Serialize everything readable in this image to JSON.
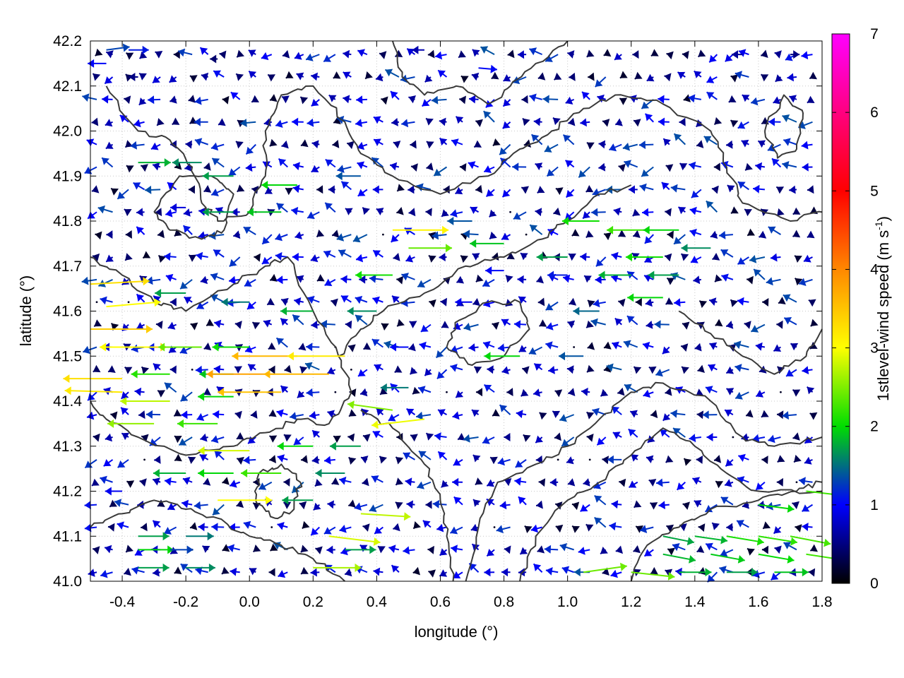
{
  "chart_data": {
    "type": "vector-field",
    "xlabel": "longitude (°)",
    "ylabel": "latitude (°)",
    "colorbar_label": "1stlevel-wind speed (m s",
    "colorbar_label_sup": "-1",
    "colorbar_label_close": ")",
    "xlim": [
      -0.5,
      1.8
    ],
    "ylim": [
      41.0,
      42.2
    ],
    "x_ticks": [
      "-0.4",
      "-0.2",
      "0.0",
      "0.2",
      "0.4",
      "0.6",
      "0.8",
      "1.0",
      "1.2",
      "1.4",
      "1.6",
      "1.8"
    ],
    "x_tick_values": [
      -0.4,
      -0.2,
      0.0,
      0.2,
      0.4,
      0.6,
      0.8,
      1.0,
      1.2,
      1.4,
      1.6,
      1.8
    ],
    "y_ticks": [
      "41.0",
      "41.1",
      "41.2",
      "41.3",
      "41.4",
      "41.5",
      "41.6",
      "41.7",
      "41.8",
      "41.9",
      "42.0",
      "42.1",
      "42.2"
    ],
    "y_tick_values": [
      41.0,
      41.1,
      41.2,
      41.3,
      41.4,
      41.5,
      41.6,
      41.7,
      41.8,
      41.9,
      42.0,
      42.1,
      42.2
    ],
    "colorbar_ticks": [
      "0",
      "1",
      "2",
      "3",
      "4",
      "5",
      "6",
      "7"
    ],
    "colorbar_range": [
      0,
      7
    ],
    "colormap": [
      "#000000",
      "#0000ff",
      "#00dd00",
      "#ffff00",
      "#ff8800",
      "#ff0000",
      "#ff00ff"
    ],
    "grid": true,
    "contours": true,
    "vectors": [
      {
        "lon": -0.45,
        "lat": 42.18,
        "u": 1.5,
        "v": 0.2
      },
      {
        "lon": -0.38,
        "lat": 42.18,
        "u": 1.3,
        "v": 0.0
      },
      {
        "lon": -0.45,
        "lat": 42.15,
        "u": -1.2,
        "v": 0.0
      },
      {
        "lon": -0.35,
        "lat": 42.12,
        "u": -0.6,
        "v": 0.0
      },
      {
        "lon": -0.1,
        "lat": 42.16,
        "u": -0.5,
        "v": 0.0
      },
      {
        "lon": 0.55,
        "lat": 42.18,
        "u": -0.8,
        "v": 0.0
      },
      {
        "lon": 0.72,
        "lat": 42.14,
        "u": 1.2,
        "v": -0.1
      },
      {
        "lon": 1.55,
        "lat": 42.17,
        "u": -0.7,
        "v": 0.0
      },
      {
        "lon": 1.7,
        "lat": 42.17,
        "u": 0.6,
        "v": 0.0
      },
      {
        "lon": -0.35,
        "lat": 41.93,
        "u": 2.1,
        "v": 0.0
      },
      {
        "lon": -0.15,
        "lat": 41.93,
        "u": -1.9,
        "v": 0.0
      },
      {
        "lon": -0.05,
        "lat": 41.9,
        "u": -2.0,
        "v": 0.0
      },
      {
        "lon": 0.15,
        "lat": 41.88,
        "u": -2.3,
        "v": 0.0
      },
      {
        "lon": 0.35,
        "lat": 41.9,
        "u": -1.6,
        "v": 0.0
      },
      {
        "lon": -0.2,
        "lat": 41.83,
        "u": -1.0,
        "v": 0.0
      },
      {
        "lon": -0.05,
        "lat": 41.82,
        "u": -2.0,
        "v": 0.0
      },
      {
        "lon": 0.1,
        "lat": 41.82,
        "u": -2.2,
        "v": 0.0
      },
      {
        "lon": 0.45,
        "lat": 41.78,
        "u": 3.6,
        "v": 0.0
      },
      {
        "lon": 0.5,
        "lat": 41.74,
        "u": 2.8,
        "v": 0.0
      },
      {
        "lon": 0.7,
        "lat": 41.8,
        "u": -1.6,
        "v": 0.0
      },
      {
        "lon": 1.1,
        "lat": 41.8,
        "u": -2.4,
        "v": 0.0
      },
      {
        "lon": 1.25,
        "lat": 41.78,
        "u": -2.6,
        "v": 0.0
      },
      {
        "lon": 1.35,
        "lat": 41.78,
        "u": -2.3,
        "v": 0.0
      },
      {
        "lon": 0.8,
        "lat": 41.75,
        "u": -2.2,
        "v": 0.0
      },
      {
        "lon": 1.0,
        "lat": 41.72,
        "u": -2.0,
        "v": 0.0
      },
      {
        "lon": 1.3,
        "lat": 41.72,
        "u": -2.4,
        "v": 0.0
      },
      {
        "lon": 1.45,
        "lat": 41.74,
        "u": -1.9,
        "v": 0.0
      },
      {
        "lon": 0.45,
        "lat": 41.68,
        "u": -2.4,
        "v": 0.0
      },
      {
        "lon": 0.8,
        "lat": 41.69,
        "u": -1.2,
        "v": 0.0
      },
      {
        "lon": 1.0,
        "lat": 41.68,
        "u": -1.3,
        "v": 0.0
      },
      {
        "lon": 1.2,
        "lat": 41.68,
        "u": -2.1,
        "v": 0.0
      },
      {
        "lon": 1.35,
        "lat": 41.68,
        "u": -2.0,
        "v": 0.0
      },
      {
        "lon": -0.5,
        "lat": 41.66,
        "u": 3.8,
        "v": 0.2
      },
      {
        "lon": -0.45,
        "lat": 41.61,
        "u": 3.5,
        "v": 0.3
      },
      {
        "lon": -0.2,
        "lat": 41.64,
        "u": -2.0,
        "v": 0.0
      },
      {
        "lon": 0.0,
        "lat": 41.62,
        "u": -1.8,
        "v": 0.0
      },
      {
        "lon": 0.2,
        "lat": 41.6,
        "u": -2.1,
        "v": 0.0
      },
      {
        "lon": 0.4,
        "lat": 41.6,
        "u": -1.9,
        "v": 0.0
      },
      {
        "lon": 0.7,
        "lat": 41.62,
        "u": -1.1,
        "v": 0.0
      },
      {
        "lon": 1.1,
        "lat": 41.6,
        "u": -1.7,
        "v": 0.0
      },
      {
        "lon": 1.3,
        "lat": 41.63,
        "u": -2.3,
        "v": 0.0
      },
      {
        "lon": -0.5,
        "lat": 41.56,
        "u": 4.0,
        "v": 0.0
      },
      {
        "lon": -0.45,
        "lat": 41.52,
        "u": 3.9,
        "v": 0.0
      },
      {
        "lon": -0.3,
        "lat": 41.52,
        "u": -3.5,
        "v": 0.0
      },
      {
        "lon": -0.15,
        "lat": 41.52,
        "u": -2.8,
        "v": 0.0
      },
      {
        "lon": 0.0,
        "lat": 41.52,
        "u": -2.4,
        "v": 0.0
      },
      {
        "lon": 0.15,
        "lat": 41.5,
        "u": -4.2,
        "v": 0.0
      },
      {
        "lon": 0.3,
        "lat": 41.5,
        "u": -3.7,
        "v": 0.0
      },
      {
        "lon": 0.5,
        "lat": 41.52,
        "u": -1.2,
        "v": 0.0
      },
      {
        "lon": 0.85,
        "lat": 41.5,
        "u": -2.3,
        "v": 0.0
      },
      {
        "lon": 1.05,
        "lat": 41.5,
        "u": -1.6,
        "v": 0.0
      },
      {
        "lon": -0.4,
        "lat": 41.45,
        "u": -3.8,
        "v": 0.0
      },
      {
        "lon": -0.25,
        "lat": 41.46,
        "u": -2.5,
        "v": 0.0
      },
      {
        "lon": -0.05,
        "lat": 41.46,
        "u": -2.2,
        "v": 0.0
      },
      {
        "lon": 0.08,
        "lat": 41.46,
        "u": -4.4,
        "v": 0.0
      },
      {
        "lon": 0.25,
        "lat": 41.46,
        "u": -4.2,
        "v": 0.0
      },
      {
        "lon": 0.5,
        "lat": 41.43,
        "u": -1.8,
        "v": 0.0
      },
      {
        "lon": -0.4,
        "lat": 41.42,
        "u": -3.7,
        "v": 0.1
      },
      {
        "lon": -0.25,
        "lat": 41.4,
        "u": -3.2,
        "v": 0.0
      },
      {
        "lon": -0.05,
        "lat": 41.41,
        "u": -2.3,
        "v": 0.0
      },
      {
        "lon": 0.1,
        "lat": 41.42,
        "u": -4.1,
        "v": 0.0
      },
      {
        "lon": 0.45,
        "lat": 41.38,
        "u": -2.9,
        "v": 0.4
      },
      {
        "lon": 0.55,
        "lat": 41.36,
        "u": -3.4,
        "v": -0.4
      },
      {
        "lon": -0.3,
        "lat": 41.35,
        "u": -3.0,
        "v": 0.0
      },
      {
        "lon": -0.1,
        "lat": 41.35,
        "u": -2.6,
        "v": 0.0
      },
      {
        "lon": 0.0,
        "lat": 41.29,
        "u": -3.3,
        "v": 0.0
      },
      {
        "lon": 0.2,
        "lat": 41.3,
        "u": -2.3,
        "v": 0.0
      },
      {
        "lon": 0.35,
        "lat": 41.3,
        "u": -2.0,
        "v": 0.0
      },
      {
        "lon": -0.2,
        "lat": 41.24,
        "u": -2.1,
        "v": 0.0
      },
      {
        "lon": -0.05,
        "lat": 41.24,
        "u": -2.3,
        "v": 0.0
      },
      {
        "lon": 0.1,
        "lat": 41.24,
        "u": -2.6,
        "v": 0.0
      },
      {
        "lon": 0.3,
        "lat": 41.24,
        "u": -1.9,
        "v": 0.0
      },
      {
        "lon": -0.4,
        "lat": 41.2,
        "u": -1.1,
        "v": 0.0
      },
      {
        "lon": -0.1,
        "lat": 41.18,
        "u": 3.5,
        "v": 0.0
      },
      {
        "lon": 0.2,
        "lat": 41.18,
        "u": -2.0,
        "v": 0.0
      },
      {
        "lon": 0.35,
        "lat": 41.15,
        "u": 3.2,
        "v": -0.2
      },
      {
        "lon": -0.35,
        "lat": 41.1,
        "u": 2.0,
        "v": 0.0
      },
      {
        "lon": -0.2,
        "lat": 41.1,
        "u": 1.8,
        "v": 0.0
      },
      {
        "lon": 0.25,
        "lat": 41.1,
        "u": 3.3,
        "v": -0.4
      },
      {
        "lon": -0.35,
        "lat": 41.07,
        "u": 2.3,
        "v": 0.0
      },
      {
        "lon": -0.25,
        "lat": 41.07,
        "u": 1.5,
        "v": 0.0
      },
      {
        "lon": 0.3,
        "lat": 41.07,
        "u": 2.0,
        "v": 0.0
      },
      {
        "lon": -0.35,
        "lat": 41.03,
        "u": 2.0,
        "v": 0.0
      },
      {
        "lon": -0.2,
        "lat": 41.03,
        "u": 1.9,
        "v": 0.0
      },
      {
        "lon": 0.2,
        "lat": 41.03,
        "u": 3.1,
        "v": 0.0
      },
      {
        "lon": 1.3,
        "lat": 41.1,
        "u": 2.0,
        "v": -0.4
      },
      {
        "lon": 1.4,
        "lat": 41.1,
        "u": 2.1,
        "v": -0.3
      },
      {
        "lon": 1.5,
        "lat": 41.1,
        "u": 2.4,
        "v": -0.4
      },
      {
        "lon": 1.6,
        "lat": 41.1,
        "u": 2.5,
        "v": -0.4
      },
      {
        "lon": 1.7,
        "lat": 41.1,
        "u": 2.6,
        "v": -0.5
      },
      {
        "lon": 1.3,
        "lat": 41.06,
        "u": 2.1,
        "v": -0.4
      },
      {
        "lon": 1.45,
        "lat": 41.06,
        "u": 2.2,
        "v": -0.4
      },
      {
        "lon": 1.6,
        "lat": 41.06,
        "u": 2.3,
        "v": -0.4
      },
      {
        "lon": 1.75,
        "lat": 41.06,
        "u": 2.6,
        "v": -0.4
      },
      {
        "lon": 1.05,
        "lat": 41.02,
        "u": 2.8,
        "v": 0.4
      },
      {
        "lon": 1.2,
        "lat": 41.02,
        "u": 2.8,
        "v": -0.3
      },
      {
        "lon": 1.35,
        "lat": 41.02,
        "u": 2.1,
        "v": 0.0
      },
      {
        "lon": 1.5,
        "lat": 41.02,
        "u": 2.0,
        "v": 0.0
      },
      {
        "lon": 1.65,
        "lat": 41.02,
        "u": 2.2,
        "v": 0.0
      },
      {
        "lon": 1.75,
        "lat": 41.2,
        "u": 2.6,
        "v": -0.3
      },
      {
        "lon": 1.6,
        "lat": 41.17,
        "u": 2.3,
        "v": -0.3
      }
    ]
  }
}
